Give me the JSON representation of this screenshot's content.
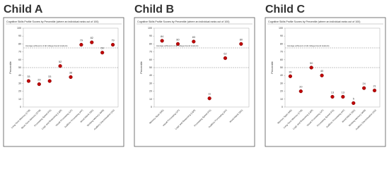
{
  "chart_data": [
    {
      "type": "dot",
      "heading": "Child A",
      "title": "Cognitive Skills Profile Scores by Percentile (where an individual ranks out of 100)",
      "ylabel": "Percentile",
      "categories": [
        "Long-Term Memory (LTM)",
        "Short-Term Memory (STM)",
        "Processing Speed (PS)",
        "Logic and Reasoning (L&R)",
        "Visual Processing (VP)",
        "Auditory Processing (AP)",
        "Word Attack (WA)",
        "Working Memory (WM)",
        "Auditory Discrimination (AD)"
      ],
      "values": [
        33,
        29,
        33,
        52,
        38,
        79,
        82,
        69,
        79
      ],
      "color": "#c00000",
      "ylim": [
        0,
        100
      ],
      "yticks": [
        0,
        10,
        20,
        30,
        40,
        50,
        60,
        70,
        80,
        90,
        100
      ],
      "reference_lines": [
        {
          "value": 75,
          "label": "Average achievers of all college-bound students"
        },
        {
          "value": 50
        }
      ]
    },
    {
      "type": "dot",
      "heading": "Child B",
      "title": "Cognitive Skills Profile Scores by Percentile (where an individual ranks out of 100)",
      "ylabel": "Percentile",
      "categories": [
        "Memory Span (MS)",
        "Visual Processing (VP)",
        "Logic and Reasoning (L&R)",
        "Processing Speed (PS)",
        "Auditory Processing (AP)",
        "Word Attack (WA)"
      ],
      "values": [
        84,
        80,
        83,
        11,
        62,
        80
      ],
      "color": "#c00000",
      "ylim": [
        0,
        100
      ],
      "yticks": [
        0,
        10,
        20,
        30,
        40,
        50,
        60,
        70,
        80,
        90,
        100
      ],
      "reference_lines": [
        {
          "value": 75,
          "label": "Average achievers of all college-bound students"
        },
        {
          "value": 50
        }
      ]
    },
    {
      "type": "dot",
      "heading": "Child C",
      "title": "Cognitive Skills Profile Scores by Percentile (where an individual ranks out of 100)",
      "ylabel": "Percentile",
      "categories": [
        "Memory Span (MS)",
        "Long-Term Memory (LTM)",
        "Logic and Reasoning (L&R)",
        "Visual Processing (VP)",
        "Processing Speed (PS)",
        "Auditory Processing (AP)",
        "Word Attack (WA)",
        "Working Memory (WM)",
        "Auditory Discrimination (AD)"
      ],
      "values": [
        39,
        20,
        50,
        40,
        13,
        13,
        5,
        24,
        21
      ],
      "color": "#c00000",
      "ylim": [
        0,
        100
      ],
      "yticks": [
        0,
        10,
        20,
        30,
        40,
        50,
        60,
        70,
        80,
        90,
        100
      ],
      "reference_lines": [
        {
          "value": 75,
          "label": "Average achievers of all college-bound students"
        },
        {
          "value": 50
        }
      ]
    }
  ]
}
